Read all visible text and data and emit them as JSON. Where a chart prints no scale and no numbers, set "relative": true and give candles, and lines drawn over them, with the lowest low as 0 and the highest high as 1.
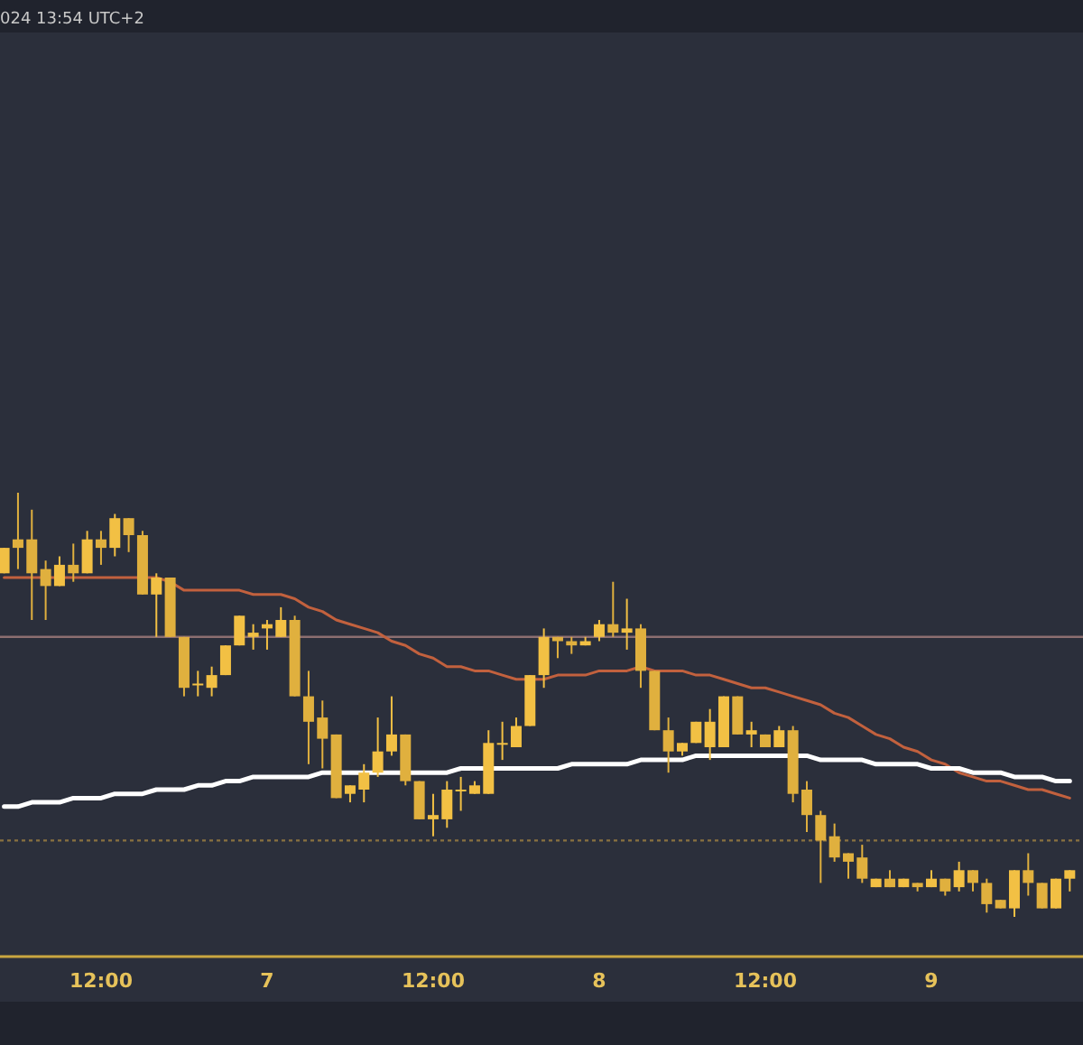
{
  "chart_data": {
    "type": "candlestick",
    "relative": true,
    "annotations": [
      "024 13:54 UTC+2"
    ],
    "colors": [
      "#f2c044",
      "#e0b03e",
      "#e0b03e",
      "#e0b03e",
      "#f2c044",
      "#e0b03e",
      "#f2c044",
      "#e0b03e",
      "#f2c044",
      "#e0b03e",
      "#e0b03e",
      "#f2c044",
      "#e0b03e",
      "#e0b03e",
      "#f2c044",
      "#f2c044",
      "#f2c044",
      "#f2c044",
      "#f2c044",
      "#f2c044",
      "#f2c044",
      "#e0b03e",
      "#e0b03e",
      "#e0b03e",
      "#e0b03e",
      "#f2c044",
      "#f2c044",
      "#f2c044",
      "#f2c044",
      "#e0b03e",
      "#e0b03e",
      "#f2c044",
      "#f2c044",
      "#f2c044",
      "#f2c044",
      "#f2c044",
      "#f2c044",
      "#f2c044",
      "#f2c044",
      "#f2c044",
      "#e0b03e",
      "#e0b03e",
      "#f2c044",
      "#f2c044",
      "#e0b03e",
      "#f2c044",
      "#e0b03e",
      "#e0b03e",
      "#e0b03e",
      "#f2c044",
      "#f2c044",
      "#f2c044",
      "#f2c044",
      "#e0b03e",
      "#f2c044",
      "#e0b03e",
      "#f2c044",
      "#e0b03e",
      "#e0b03e",
      "#e0b03e",
      "#e0b03e",
      "#e0b03e",
      "#e0b03e",
      "#f2c044",
      "#e0b03e",
      "#f2c044",
      "#e0b03e",
      "#f2c044",
      "#e0b03e",
      "#f2c044",
      "#e0b03e",
      "#e0b03e",
      "#e0b03e",
      "#f2c044",
      "#e0b03e",
      "#e0b03e",
      "#f2c044",
      "#f2c044"
    ],
    "grid": false,
    "categories": [
      null,
      null,
      null,
      null,
      null,
      null,
      null,
      "12:00",
      null,
      null,
      null,
      null,
      null,
      null,
      null,
      null,
      null,
      null,
      null,
      "7",
      null,
      null,
      null,
      null,
      null,
      null,
      null,
      null,
      null,
      null,
      null,
      "12:00",
      null,
      null,
      null,
      null,
      null,
      null,
      null,
      null,
      null,
      null,
      null,
      "8",
      null,
      null,
      null,
      null,
      null,
      null,
      null,
      null,
      null,
      null,
      null,
      "12:00",
      null,
      null,
      null,
      null,
      null,
      null,
      null,
      null,
      null,
      null,
      null,
      "9",
      null,
      null,
      null,
      null,
      null,
      null,
      null,
      null,
      null,
      null
    ],
    "ohlc": [
      [
        0.81,
        0.87,
        0.81,
        0.87
      ],
      [
        0.89,
        1.0,
        0.82,
        0.87
      ],
      [
        0.89,
        0.96,
        0.7,
        0.81
      ],
      [
        0.82,
        0.84,
        0.7,
        0.78
      ],
      [
        0.78,
        0.85,
        0.78,
        0.83
      ],
      [
        0.83,
        0.88,
        0.79,
        0.81
      ],
      [
        0.81,
        0.91,
        0.81,
        0.89
      ],
      [
        0.89,
        0.91,
        0.83,
        0.87
      ],
      [
        0.87,
        0.95,
        0.85,
        0.94
      ],
      [
        0.94,
        0.94,
        0.86,
        0.9
      ],
      [
        0.9,
        0.91,
        0.76,
        0.76
      ],
      [
        0.76,
        0.81,
        0.66,
        0.8
      ],
      [
        0.8,
        0.8,
        0.66,
        0.66
      ],
      [
        0.66,
        0.66,
        0.52,
        0.54
      ],
      [
        0.55,
        0.58,
        0.52,
        0.55
      ],
      [
        0.54,
        0.59,
        0.52,
        0.57
      ],
      [
        0.57,
        0.64,
        0.57,
        0.64
      ],
      [
        0.64,
        0.71,
        0.64,
        0.71
      ],
      [
        0.66,
        0.69,
        0.63,
        0.67
      ],
      [
        0.68,
        0.7,
        0.63,
        0.69
      ],
      [
        0.66,
        0.73,
        0.66,
        0.7
      ],
      [
        0.7,
        0.71,
        0.52,
        0.52
      ],
      [
        0.52,
        0.58,
        0.36,
        0.46
      ],
      [
        0.47,
        0.51,
        0.35,
        0.42
      ],
      [
        0.43,
        0.43,
        0.28,
        0.28
      ],
      [
        0.29,
        0.31,
        0.27,
        0.31
      ],
      [
        0.3,
        0.36,
        0.27,
        0.34
      ],
      [
        0.34,
        0.47,
        0.33,
        0.39
      ],
      [
        0.39,
        0.52,
        0.38,
        0.43
      ],
      [
        0.43,
        0.43,
        0.31,
        0.32
      ],
      [
        0.32,
        0.32,
        0.23,
        0.23
      ],
      [
        0.23,
        0.29,
        0.19,
        0.24
      ],
      [
        0.23,
        0.32,
        0.21,
        0.3
      ],
      [
        0.3,
        0.33,
        0.25,
        0.3
      ],
      [
        0.29,
        0.32,
        0.29,
        0.31
      ],
      [
        0.29,
        0.44,
        0.29,
        0.41
      ],
      [
        0.41,
        0.46,
        0.37,
        0.41
      ],
      [
        0.4,
        0.47,
        0.4,
        0.45
      ],
      [
        0.45,
        0.57,
        0.45,
        0.57
      ],
      [
        0.57,
        0.68,
        0.54,
        0.66
      ],
      [
        0.66,
        0.66,
        0.61,
        0.65
      ],
      [
        0.65,
        0.66,
        0.62,
        0.64
      ],
      [
        0.64,
        0.66,
        0.64,
        0.65
      ],
      [
        0.66,
        0.7,
        0.65,
        0.69
      ],
      [
        0.69,
        0.79,
        0.66,
        0.67
      ],
      [
        0.67,
        0.75,
        0.63,
        0.68
      ],
      [
        0.68,
        0.69,
        0.54,
        0.58
      ],
      [
        0.58,
        0.58,
        0.44,
        0.44
      ],
      [
        0.44,
        0.47,
        0.34,
        0.39
      ],
      [
        0.39,
        0.41,
        0.38,
        0.41
      ],
      [
        0.41,
        0.46,
        0.41,
        0.46
      ],
      [
        0.4,
        0.49,
        0.37,
        0.46
      ],
      [
        0.4,
        0.52,
        0.4,
        0.52
      ],
      [
        0.52,
        0.52,
        0.43,
        0.43
      ],
      [
        0.43,
        0.46,
        0.4,
        0.44
      ],
      [
        0.43,
        0.43,
        0.4,
        0.4
      ],
      [
        0.4,
        0.45,
        0.4,
        0.44
      ],
      [
        0.44,
        0.45,
        0.27,
        0.29
      ],
      [
        0.3,
        0.32,
        0.2,
        0.24
      ],
      [
        0.24,
        0.25,
        0.08,
        0.18
      ],
      [
        0.19,
        0.22,
        0.13,
        0.14
      ],
      [
        0.15,
        0.15,
        0.09,
        0.13
      ],
      [
        0.14,
        0.17,
        0.08,
        0.09
      ],
      [
        0.07,
        0.09,
        0.07,
        0.09
      ],
      [
        0.09,
        0.11,
        0.07,
        0.07
      ],
      [
        0.07,
        0.09,
        0.07,
        0.09
      ],
      [
        0.08,
        0.08,
        0.06,
        0.07
      ],
      [
        0.07,
        0.11,
        0.07,
        0.09
      ],
      [
        0.09,
        0.09,
        0.05,
        0.06
      ],
      [
        0.07,
        0.13,
        0.06,
        0.11
      ],
      [
        0.11,
        0.11,
        0.06,
        0.08
      ],
      [
        0.08,
        0.09,
        0.01,
        0.03
      ],
      [
        0.04,
        0.04,
        0.02,
        0.02
      ],
      [
        0.02,
        0.11,
        0.0,
        0.11
      ],
      [
        0.11,
        0.15,
        0.05,
        0.08
      ],
      [
        0.08,
        0.08,
        0.02,
        0.02
      ],
      [
        0.02,
        0.09,
        0.02,
        0.09
      ],
      [
        0.09,
        0.11,
        0.06,
        0.11
      ]
    ],
    "series": [
      {
        "type": "line",
        "color": "#c2613e",
        "values": [
          0.8,
          0.8,
          0.8,
          0.8,
          0.8,
          0.8,
          0.8,
          0.8,
          0.8,
          0.8,
          0.8,
          0.8,
          0.79,
          0.77,
          0.77,
          0.77,
          0.77,
          0.77,
          0.76,
          0.76,
          0.76,
          0.75,
          0.73,
          0.72,
          0.7,
          0.69,
          0.68,
          0.67,
          0.65,
          0.64,
          0.62,
          0.61,
          0.59,
          0.59,
          0.58,
          0.58,
          0.57,
          0.56,
          0.56,
          0.56,
          0.57,
          0.57,
          0.57,
          0.58,
          0.58,
          0.58,
          0.59,
          0.58,
          0.58,
          0.58,
          0.57,
          0.57,
          0.56,
          0.55,
          0.54,
          0.54,
          0.53,
          0.52,
          0.51,
          0.5,
          0.48,
          0.47,
          0.45,
          0.43,
          0.42,
          0.4,
          0.39,
          0.37,
          0.36,
          0.34,
          0.33,
          0.32,
          0.32,
          0.31,
          0.3,
          0.3,
          0.29,
          0.28
        ]
      },
      {
        "type": "line",
        "color": "#ffffff",
        "values": [
          0.26,
          0.26,
          0.27,
          0.27,
          0.27,
          0.28,
          0.28,
          0.28,
          0.29,
          0.29,
          0.29,
          0.3,
          0.3,
          0.3,
          0.31,
          0.31,
          0.32,
          0.32,
          0.33,
          0.33,
          0.33,
          0.33,
          0.33,
          0.34,
          0.34,
          0.34,
          0.34,
          0.34,
          0.34,
          0.34,
          0.34,
          0.34,
          0.34,
          0.35,
          0.35,
          0.35,
          0.35,
          0.35,
          0.35,
          0.35,
          0.35,
          0.36,
          0.36,
          0.36,
          0.36,
          0.36,
          0.37,
          0.37,
          0.37,
          0.37,
          0.38,
          0.38,
          0.38,
          0.38,
          0.38,
          0.38,
          0.38,
          0.38,
          0.38,
          0.37,
          0.37,
          0.37,
          0.37,
          0.36,
          0.36,
          0.36,
          0.36,
          0.35,
          0.35,
          0.35,
          0.34,
          0.34,
          0.34,
          0.33,
          0.33,
          0.33,
          0.32,
          0.32
        ]
      }
    ],
    "ref_lines": [
      {
        "axis": "y",
        "value": 0.66,
        "color": "#8c6e70",
        "line_style": "solid"
      },
      {
        "axis": "y",
        "value": 0.18,
        "color": "#8a7240",
        "line_style": "dotted"
      }
    ]
  }
}
